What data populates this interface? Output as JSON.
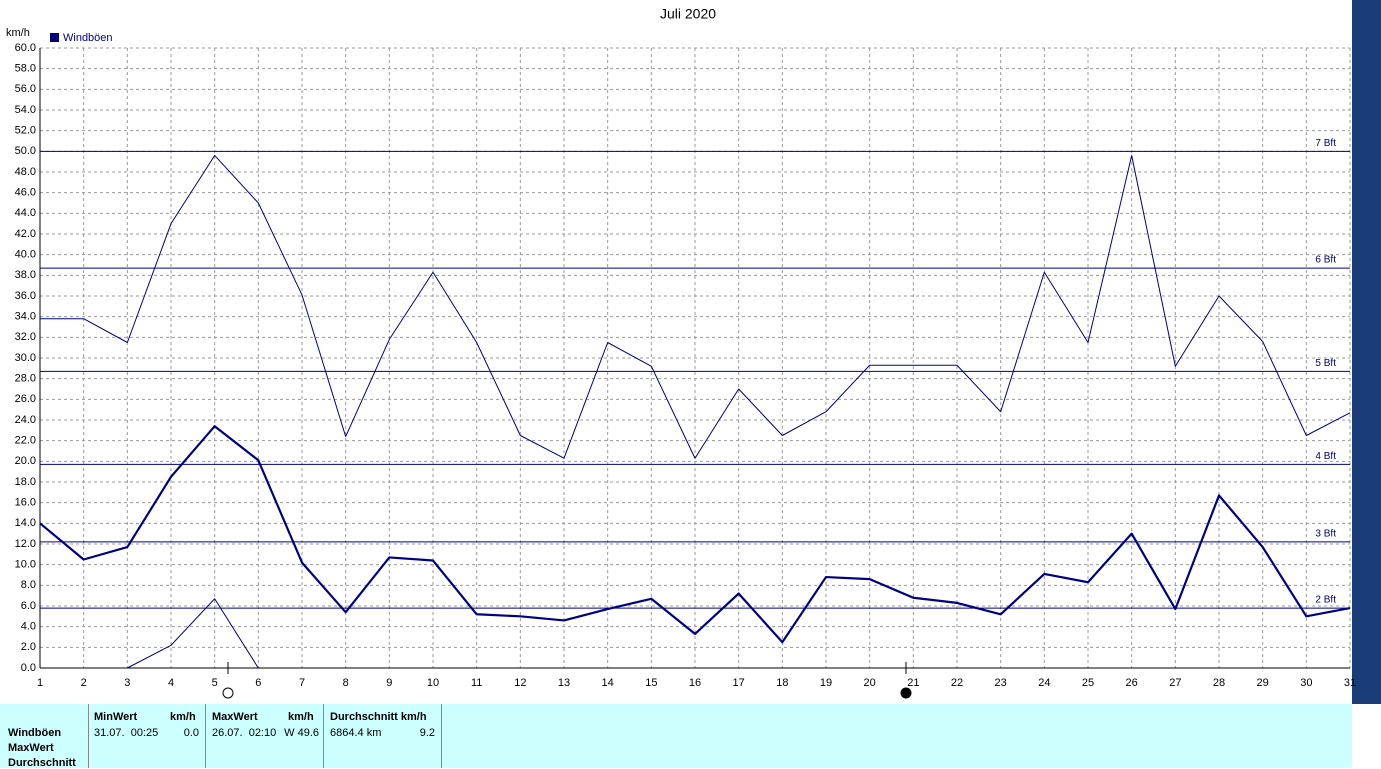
{
  "chart_data": {
    "type": "line",
    "title": "Juli 2020",
    "y_unit": "km/h",
    "x": [
      1,
      2,
      3,
      4,
      5,
      6,
      7,
      8,
      9,
      10,
      11,
      12,
      13,
      14,
      15,
      16,
      17,
      18,
      19,
      20,
      21,
      22,
      23,
      24,
      25,
      26,
      27,
      28,
      29,
      30,
      31
    ],
    "xlim": [
      1,
      31
    ],
    "xticks": [
      1,
      2,
      3,
      4,
      5,
      6,
      7,
      8,
      9,
      10,
      11,
      12,
      13,
      14,
      15,
      16,
      17,
      18,
      19,
      20,
      21,
      22,
      23,
      24,
      25,
      26,
      27,
      28,
      29,
      30,
      31
    ],
    "ylim": [
      0,
      60
    ],
    "yticks": [
      {
        "value": 0,
        "label": "0.0"
      },
      {
        "value": 2,
        "label": "2.0"
      },
      {
        "value": 4,
        "label": "4.0"
      },
      {
        "value": 6,
        "label": "6.0"
      },
      {
        "value": 8,
        "label": "8.0"
      },
      {
        "value": 10,
        "label": "10.0"
      },
      {
        "value": 12,
        "label": "12.0"
      },
      {
        "value": 14,
        "label": "14.0"
      },
      {
        "value": 16,
        "label": "16.0"
      },
      {
        "value": 18,
        "label": "18.0"
      },
      {
        "value": 20,
        "label": "20.0"
      },
      {
        "value": 22,
        "label": "22.0"
      },
      {
        "value": 24,
        "label": "24.0"
      },
      {
        "value": 26,
        "label": "26.0"
      },
      {
        "value": 28,
        "label": "28.0"
      },
      {
        "value": 30,
        "label": "30.0"
      },
      {
        "value": 32,
        "label": "32.0"
      },
      {
        "value": 34,
        "label": "34.0"
      },
      {
        "value": 36,
        "label": "36.0"
      },
      {
        "value": 38,
        "label": "38.0"
      },
      {
        "value": 40,
        "label": "40.0"
      },
      {
        "value": 42,
        "label": "42.0"
      },
      {
        "value": 44,
        "label": "44.0"
      },
      {
        "value": 46,
        "label": "46.0"
      },
      {
        "value": 48,
        "label": "48.0"
      },
      {
        "value": 50,
        "label": "50.0"
      },
      {
        "value": 52,
        "label": "52.0"
      },
      {
        "value": 54,
        "label": "54.0"
      },
      {
        "value": 56,
        "label": "56.0"
      },
      {
        "value": 58,
        "label": "58.0"
      },
      {
        "value": 60,
        "label": "60.0"
      }
    ],
    "grid": true,
    "series": [
      {
        "name": "Windböen",
        "color": "#000080",
        "width": 1,
        "values": [
          33.8,
          33.8,
          31.5,
          43.0,
          49.6,
          45.0,
          36.1,
          22.4,
          31.8,
          38.3,
          31.5,
          22.5,
          20.3,
          31.5,
          29.2,
          20.3,
          27.0,
          22.5,
          24.8,
          29.3,
          29.3,
          29.3,
          24.8,
          38.3,
          31.5,
          49.6,
          29.2,
          36.0,
          31.6,
          22.5,
          24.7
        ]
      },
      {
        "color": "#000080",
        "width": 2.2,
        "values": [
          14.0,
          10.5,
          11.7,
          18.5,
          23.4,
          20.1,
          10.2,
          5.4,
          10.7,
          10.4,
          5.2,
          5.0,
          4.6,
          5.7,
          6.7,
          3.3,
          7.2,
          2.5,
          8.8,
          8.6,
          6.8,
          6.3,
          5.2,
          9.1,
          8.3,
          13.0,
          5.7,
          16.7,
          11.7,
          5.0,
          5.8
        ]
      },
      {
        "color": "#000080",
        "width": 1,
        "values": [
          null,
          null,
          0.0,
          2.2,
          6.7,
          0.0,
          null,
          null,
          null,
          null,
          null,
          null,
          null,
          null,
          null,
          null,
          null,
          null,
          null,
          null,
          null,
          null,
          null,
          null,
          null,
          null,
          null,
          null,
          null,
          null,
          null
        ]
      }
    ],
    "reference_lines": [
      {
        "label": "7 Bft",
        "value": 50.0
      },
      {
        "label": "6 Bft",
        "value": 38.7
      },
      {
        "label": "5 Bft",
        "value": 28.7
      },
      {
        "label": "4 Bft",
        "value": 19.7
      },
      {
        "label": "3 Bft",
        "value": 12.2
      },
      {
        "label": "2 Bft",
        "value": 5.8
      }
    ]
  },
  "summary": {
    "row_labels": [
      "Windböen",
      "MaxWert",
      "Durchschnitt"
    ],
    "min": {
      "header": "MinWert",
      "unit": "km/h",
      "date": "31.07.  00:25",
      "value": "0.0"
    },
    "max": {
      "header": "MaxWert",
      "unit": "km/h",
      "date": "26.07.  02:10",
      "value": "W 49.6"
    },
    "avg": {
      "header": "Durchschnitt km/h",
      "distance": "6864.4 km",
      "value": "9.2"
    }
  }
}
